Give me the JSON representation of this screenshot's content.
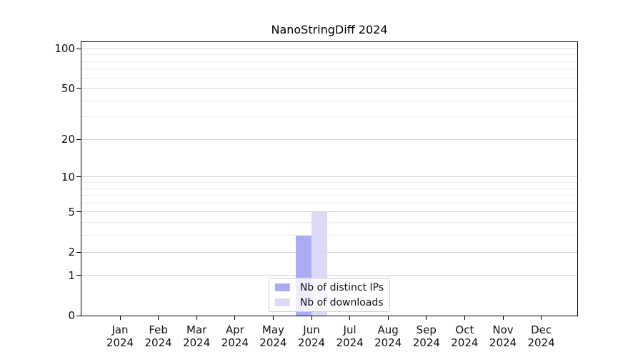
{
  "chart_data": {
    "type": "bar",
    "title": "NanoStringDiff 2024",
    "x_tick_labels": [
      {
        "month": "Jan",
        "year": "2024"
      },
      {
        "month": "Feb",
        "year": "2024"
      },
      {
        "month": "Mar",
        "year": "2024"
      },
      {
        "month": "Apr",
        "year": "2024"
      },
      {
        "month": "May",
        "year": "2024"
      },
      {
        "month": "Jun",
        "year": "2024"
      },
      {
        "month": "Jul",
        "year": "2024"
      },
      {
        "month": "Aug",
        "year": "2024"
      },
      {
        "month": "Sep",
        "year": "2024"
      },
      {
        "month": "Oct",
        "year": "2024"
      },
      {
        "month": "Nov",
        "year": "2024"
      },
      {
        "month": "Dec",
        "year": "2024"
      }
    ],
    "series": [
      {
        "name": "Nb of distinct IPs",
        "color": "rgba(158,158,243,0.85)",
        "values": [
          0,
          0,
          0,
          0,
          0,
          3,
          0,
          0,
          0,
          0,
          0,
          0
        ]
      },
      {
        "name": "Nb of downloads",
        "color": "rgba(213,213,247,0.85)",
        "values": [
          0,
          0,
          0,
          0,
          0,
          5,
          0,
          0,
          0,
          0,
          0,
          0
        ]
      }
    ],
    "y_axis": {
      "scale": "log1p",
      "major_ticks": [
        0,
        1,
        2,
        5,
        10,
        20,
        50,
        100
      ],
      "minor_ticks": [
        3,
        4,
        6,
        7,
        8,
        9,
        30,
        40,
        60,
        70,
        80,
        90
      ],
      "ylim": [
        0,
        115
      ]
    },
    "grid": {
      "show": true,
      "major_color": "#d5d5d5",
      "minor_color": "#ececec"
    },
    "legend": {
      "position": "bottom-center",
      "background": "rgba(255,255,255,0.8)",
      "border_color": "#cccccc"
    },
    "spine_color": "#000000"
  }
}
